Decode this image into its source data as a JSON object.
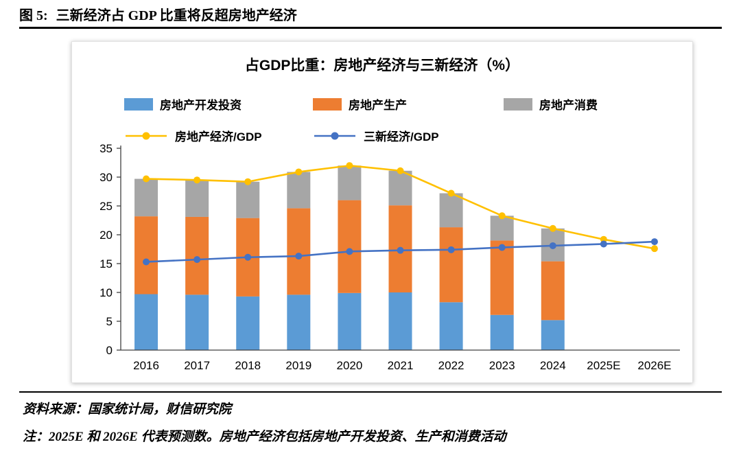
{
  "header": {
    "figure_label": "图 5:",
    "title": "三新经济占 GDP 比重将反超房地产经济"
  },
  "footer": {
    "source": "资料来源：国家统计局，财信研究院",
    "note": "注：2025E 和 2026E 代表预测数。房地产经济包括房地产开发投资、生产和消费活动"
  },
  "chart_data": {
    "type": "bar",
    "subtype": "stacked-bar-with-lines",
    "title": "占GDP比重：房地产经济与三新经济（%）",
    "categories": [
      "2016",
      "2017",
      "2018",
      "2019",
      "2020",
      "2021",
      "2022",
      "2023",
      "2024",
      "2025E",
      "2026E"
    ],
    "bar_series": [
      {
        "name": "房地产开发投资",
        "color": "#5B9BD5",
        "values": [
          9.7,
          9.6,
          9.3,
          9.6,
          9.9,
          10.0,
          8.3,
          6.1,
          5.2,
          null,
          null
        ]
      },
      {
        "name": "房地产生产",
        "color": "#ED7D31",
        "values": [
          13.5,
          13.5,
          13.6,
          15.0,
          16.1,
          15.1,
          13.0,
          12.9,
          10.2,
          null,
          null
        ]
      },
      {
        "name": "房地产消费",
        "color": "#A6A6A6",
        "values": [
          6.5,
          6.4,
          6.3,
          6.3,
          6.0,
          6.0,
          5.9,
          4.3,
          5.7,
          null,
          null
        ]
      }
    ],
    "line_series": [
      {
        "name": "房地产经济/GDP",
        "color": "#FFC000",
        "values": [
          29.7,
          29.5,
          29.2,
          30.9,
          32.0,
          31.1,
          27.2,
          23.3,
          21.1,
          19.2,
          17.6
        ]
      },
      {
        "name": "三新经济/GDP",
        "color": "#4472C4",
        "values": [
          15.3,
          15.7,
          16.1,
          16.3,
          17.1,
          17.3,
          17.4,
          17.8,
          18.1,
          18.4,
          18.8
        ]
      }
    ],
    "ylim": [
      0,
      35
    ],
    "ytick_step": 5,
    "grid": "off",
    "legend_position": "top"
  }
}
